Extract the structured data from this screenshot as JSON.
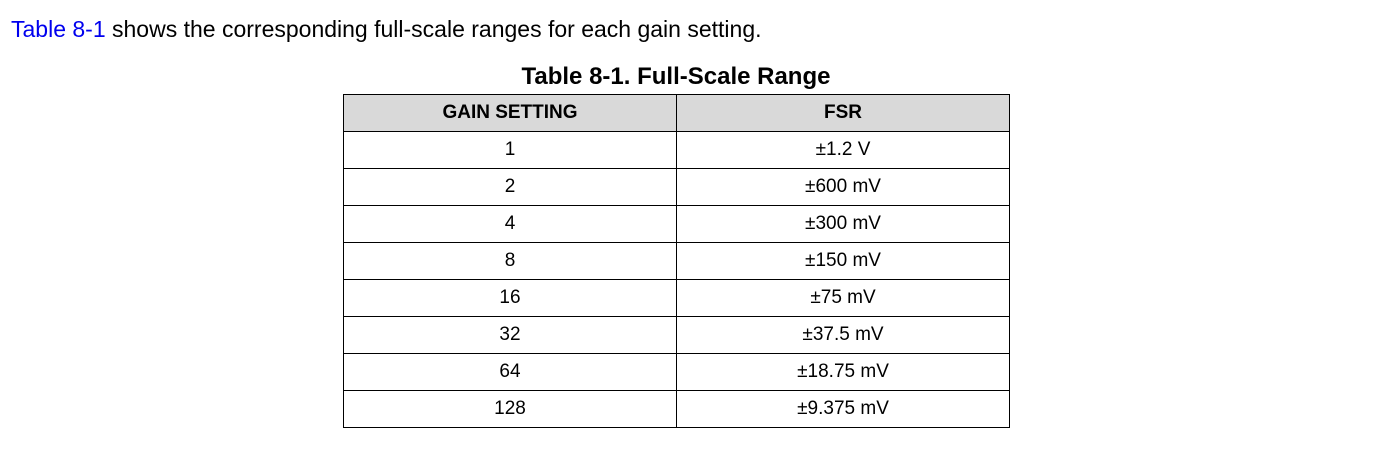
{
  "intro": {
    "link_text": "Table 8-1",
    "rest_text": " shows the corresponding full-scale ranges for each gain setting."
  },
  "table": {
    "title": "Table 8-1. Full-Scale Range",
    "headers": [
      "GAIN SETTING",
      "FSR"
    ],
    "rows": [
      [
        "1",
        "±1.2 V"
      ],
      [
        "2",
        "±600 mV"
      ],
      [
        "4",
        "±300 mV"
      ],
      [
        "8",
        "±150 mV"
      ],
      [
        "16",
        "±75 mV"
      ],
      [
        "32",
        "±37.5 mV"
      ],
      [
        "64",
        "±18.75 mV"
      ],
      [
        "128",
        "±9.375 mV"
      ]
    ]
  },
  "colors": {
    "link": "#0000ee",
    "header_bg": "#d9d9d9",
    "border": "#000000"
  }
}
